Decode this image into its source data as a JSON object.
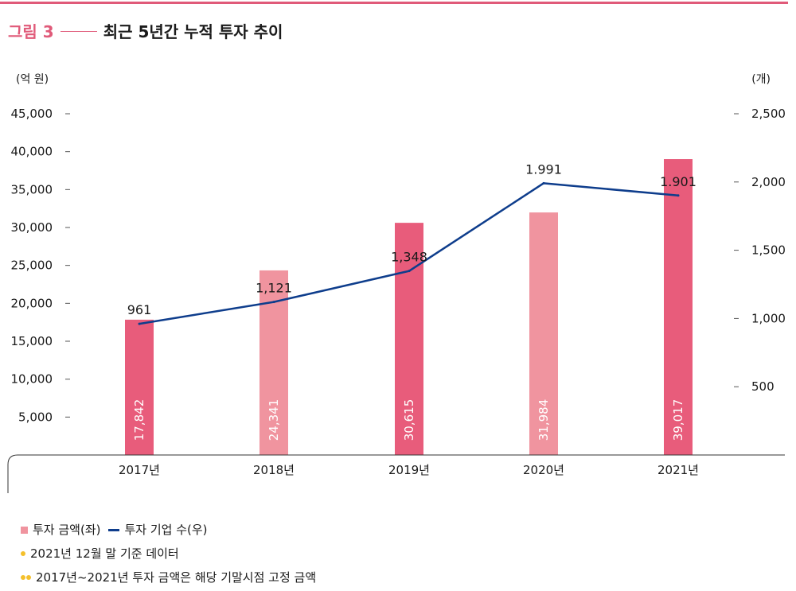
{
  "figure": {
    "label": "그림 3",
    "title": "최근 5년간 누적 투자 추이"
  },
  "chart_data": {
    "type": "bar",
    "categories": [
      "2017년",
      "2018년",
      "2019년",
      "2020년",
      "2021년"
    ],
    "series": [
      {
        "name": "투자 금액(좌)",
        "type": "bar",
        "axis": "left",
        "values": [
          17842,
          24341,
          30615,
          31984,
          39017
        ],
        "value_labels": [
          "17,842",
          "24,341",
          "30,615",
          "31,984",
          "39,017"
        ],
        "colors": [
          "#e85c7b",
          "#f0949f",
          "#e85c7b",
          "#f0949f",
          "#e85c7b"
        ]
      },
      {
        "name": "투자 기업 수(우)",
        "type": "line",
        "axis": "right",
        "values": [
          961,
          1121,
          1348,
          1991,
          1901
        ],
        "value_labels": [
          "961",
          "1,121",
          "1,348",
          "1.991",
          "1.901"
        ],
        "color": "#0e3d8c"
      }
    ],
    "left_axis": {
      "unit": "(억 원)",
      "ylim": [
        0,
        45000
      ],
      "ticks": [
        5000,
        10000,
        15000,
        20000,
        25000,
        30000,
        35000,
        40000,
        45000
      ],
      "tick_labels": [
        "5,000",
        "10,000",
        "15,000",
        "20,000",
        "25,000",
        "30,000",
        "35,000",
        "40,000",
        "45,000"
      ]
    },
    "right_axis": {
      "unit": "(개)",
      "ylim": [
        0,
        2500
      ],
      "ticks": [
        500,
        1000,
        1500,
        2000,
        2500
      ],
      "tick_labels": [
        "500",
        "1,000",
        "1,500",
        "2,000",
        "2,500"
      ]
    },
    "grid": false,
    "legend_position": "bottom-left"
  },
  "notes": [
    "2021년 12월 말 기준 데이터",
    "2017년~2021년 투자 금액은 해당 기말시점 고정 금액"
  ]
}
